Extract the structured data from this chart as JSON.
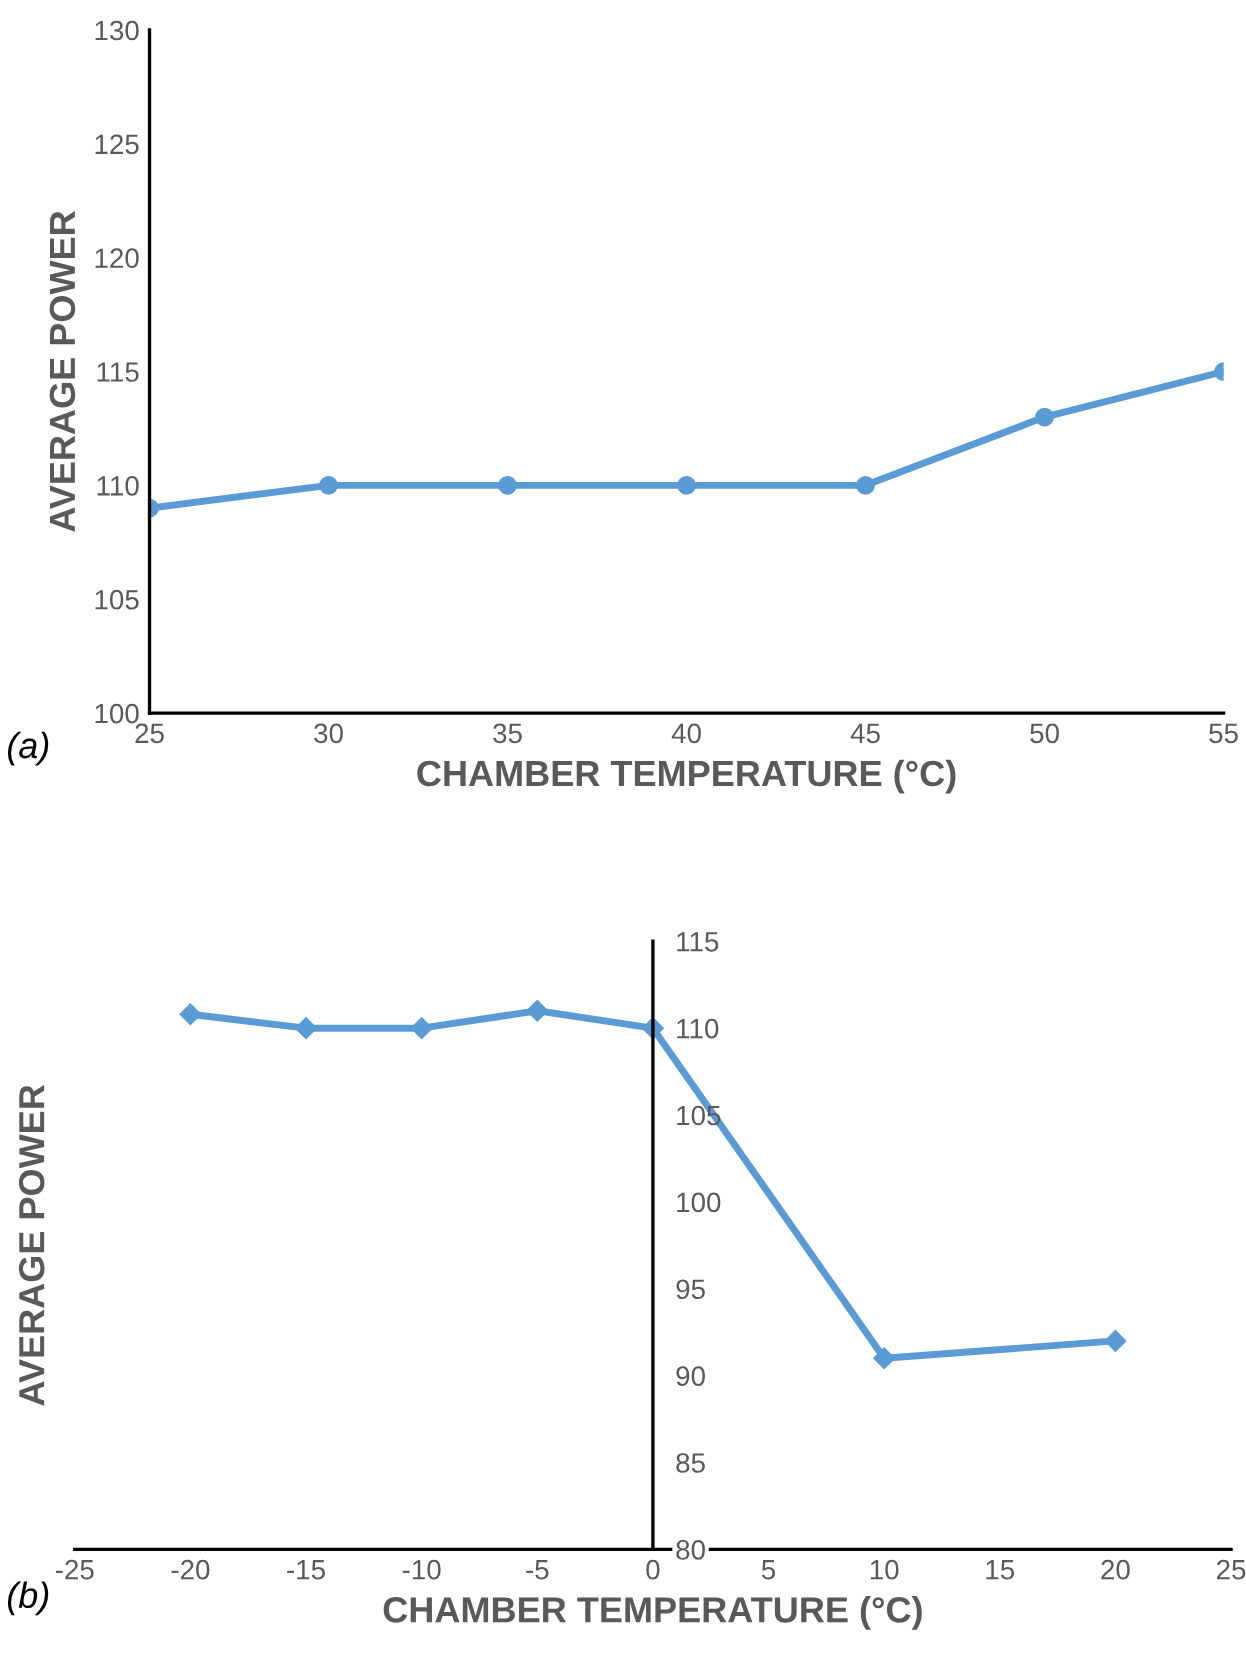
{
  "chart_data": [
    {
      "type": "line",
      "xlabel": "CHAMBER TEMPERATURE (°C)",
      "ylabel": "AVERAGE POWER",
      "annotations": [
        "(a)"
      ],
      "x": [
        25,
        30,
        35,
        40,
        45,
        50,
        55
      ],
      "series": [
        {
          "color": "#5b9bd5",
          "values": [
            109,
            110,
            110,
            110,
            110,
            113,
            115
          ]
        }
      ],
      "xlim": [
        25,
        55
      ],
      "xticks": [
        25,
        30,
        35,
        40,
        45,
        50,
        55
      ],
      "ylim": [
        100,
        130
      ],
      "yticks": [
        100,
        105,
        110,
        115,
        120,
        125,
        130
      ],
      "grid": false,
      "legend": false,
      "marker": "circle",
      "line_style": "solid"
    },
    {
      "type": "line",
      "xlabel": "CHAMBER TEMPERATURE (°C)",
      "ylabel": "AVERAGE POWER",
      "annotations": [
        "(b)"
      ],
      "x": [
        -20,
        -15,
        -10,
        -5,
        0,
        10,
        20
      ],
      "series": [
        {
          "color": "#5b9bd5",
          "values": [
            110.8,
            110,
            110,
            111,
            110,
            91,
            92
          ]
        }
      ],
      "xlim": [
        -25,
        25
      ],
      "xticks": [
        -25,
        -20,
        -15,
        -10,
        -5,
        0,
        5,
        10,
        15,
        20,
        25
      ],
      "ylim": [
        80,
        115
      ],
      "yticks": [
        80,
        85,
        90,
        95,
        100,
        105,
        110,
        115
      ],
      "grid": false,
      "legend": false,
      "marker": "diamond",
      "line_style": "solid"
    }
  ]
}
